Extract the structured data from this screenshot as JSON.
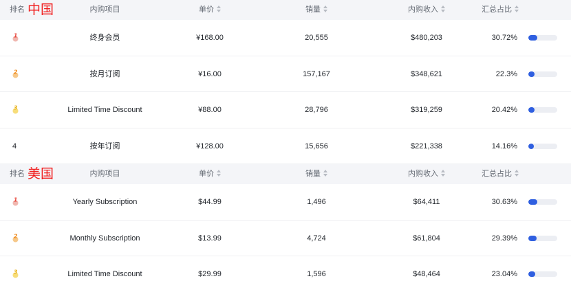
{
  "columns": {
    "rank": "排名",
    "item": "内购项目",
    "price": "单价",
    "sales": "销量",
    "revenue": "内购收入",
    "share": "汇总占比"
  },
  "colors": {
    "accent": "#2f5fe0",
    "country_label": "#f01a1a"
  },
  "sections": [
    {
      "country": "中国",
      "rows": [
        {
          "rank": "1",
          "medal": "red-medal-icon",
          "item": "终身会员",
          "price": "¥168.00",
          "sales": "20,555",
          "revenue": "$480,203",
          "share": "30.72%",
          "share_value": 30.72
        },
        {
          "rank": "2",
          "medal": "orange-medal-icon",
          "item": "按月订阅",
          "price": "¥16.00",
          "sales": "157,167",
          "revenue": "$348,621",
          "share": "22.3%",
          "share_value": 22.3
        },
        {
          "rank": "3",
          "medal": "gold-medal-icon",
          "item": "Limited Time Discount",
          "price": "¥88.00",
          "sales": "28,796",
          "revenue": "$319,259",
          "share": "20.42%",
          "share_value": 20.42
        },
        {
          "rank": "4",
          "medal": "",
          "item": "按年订阅",
          "price": "¥128.00",
          "sales": "15,656",
          "revenue": "$221,338",
          "share": "14.16%",
          "share_value": 14.16
        }
      ]
    },
    {
      "country": "美国",
      "rows": [
        {
          "rank": "1",
          "medal": "red-medal-icon",
          "item": "Yearly Subscription",
          "price": "$44.99",
          "sales": "1,496",
          "revenue": "$64,411",
          "share": "30.63%",
          "share_value": 30.63
        },
        {
          "rank": "2",
          "medal": "orange-medal-icon",
          "item": "Monthly Subscription",
          "price": "$13.99",
          "sales": "4,724",
          "revenue": "$61,804",
          "share": "29.39%",
          "share_value": 29.39
        },
        {
          "rank": "3",
          "medal": "gold-medal-icon",
          "item": "Limited Time Discount",
          "price": "$29.99",
          "sales": "1,596",
          "revenue": "$48,464",
          "share": "23.04%",
          "share_value": 23.04
        }
      ]
    }
  ]
}
